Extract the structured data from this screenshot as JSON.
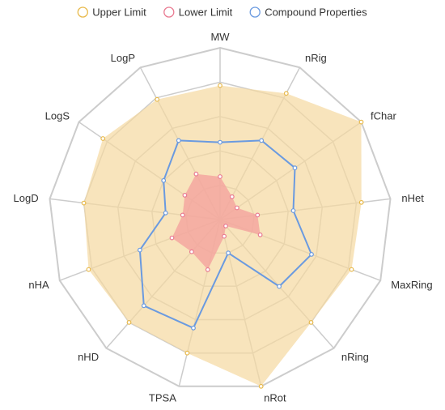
{
  "chart_data": {
    "type": "radar",
    "title": "",
    "axes": [
      "MW",
      "nRig",
      "fChar",
      "nHet",
      "MaxRing",
      "nRing",
      "nRot",
      "TPSA",
      "nHD",
      "nHA",
      "LogD",
      "LogS",
      "LogP"
    ],
    "rmax": 1,
    "rings": 5,
    "series": [
      {
        "name": "Upper Limit",
        "color": "#E8B94A",
        "fill": "#F5D9A0",
        "values": [
          0.78,
          0.83,
          1.0,
          0.83,
          0.82,
          0.8,
          1.0,
          0.8,
          0.8,
          0.82,
          0.8,
          0.83,
          0.79
        ]
      },
      {
        "name": "Lower Limit",
        "color": "#E97A91",
        "fill": "#F4A39E",
        "values": [
          0.25,
          0.15,
          0.12,
          0.22,
          0.25,
          0.05,
          0.1,
          0.3,
          0.25,
          0.3,
          0.22,
          0.25,
          0.3
        ]
      },
      {
        "name": "Compound Properties",
        "color": "#6A9AE0",
        "values": [
          0.45,
          0.52,
          0.53,
          0.43,
          0.57,
          0.52,
          0.2,
          0.65,
          0.67,
          0.5,
          0.32,
          0.4,
          0.52
        ]
      }
    ]
  }
}
